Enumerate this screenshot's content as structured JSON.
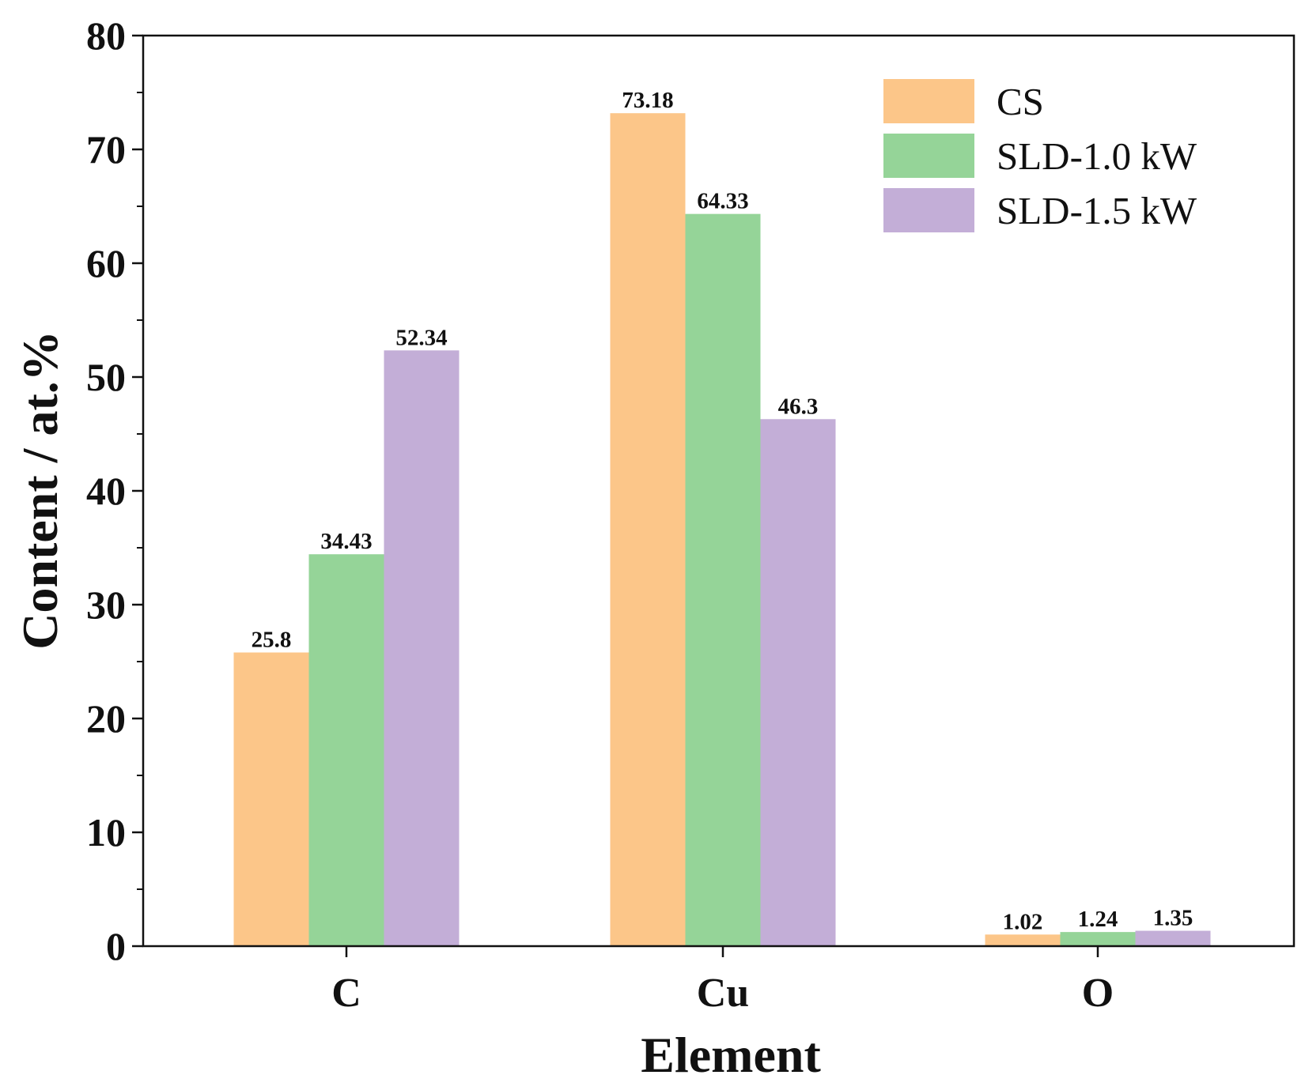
{
  "chart_data": {
    "type": "bar",
    "xlabel": "Element",
    "ylabel": "Content / at.%",
    "categories": [
      "C",
      "Cu",
      "O"
    ],
    "ylim": [
      0,
      80
    ],
    "yticks": [
      0,
      10,
      20,
      30,
      40,
      50,
      60,
      70,
      80
    ],
    "grid": false,
    "legend_position": "top-right",
    "series": [
      {
        "name": "CS",
        "color": "#FCC689",
        "values": [
          25.8,
          73.18,
          1.02
        ],
        "labels": [
          "25.8",
          "73.18",
          "1.02"
        ]
      },
      {
        "name": "SLD-1.0 kW",
        "color": "#95D498",
        "values": [
          34.43,
          64.33,
          1.24
        ],
        "labels": [
          "34.43",
          "64.33",
          "1.24"
        ]
      },
      {
        "name": "SLD-1.5 kW",
        "color": "#C3AED7",
        "values": [
          52.34,
          46.3,
          1.35
        ],
        "labels": [
          "52.34",
          "46.3",
          "1.35"
        ]
      }
    ]
  }
}
